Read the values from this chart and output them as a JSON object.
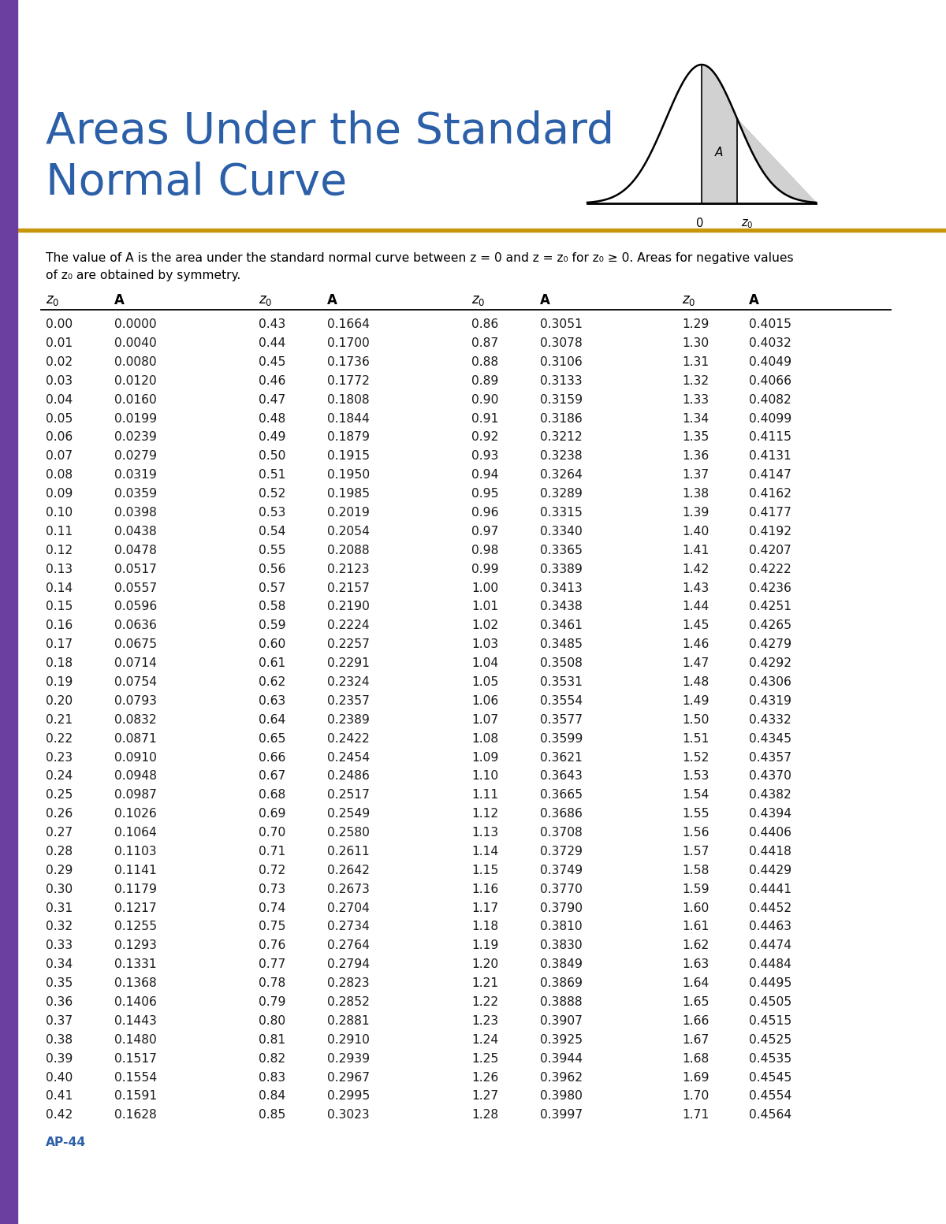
{
  "title_line1": "Areas Under the Standard",
  "title_line2": "Normal Curve",
  "title_color": "#2b5fa8",
  "sidebar_color": "#6b3fa0",
  "rule_color": "#c8960a",
  "footer": "AP-44",
  "footer_color": "#2b5fa8",
  "bg_color": "#ffffff",
  "text_color": "#1a1a1a",
  "table_data": [
    [
      0.0,
      0.0,
      0.43,
      0.1664,
      0.86,
      0.3051,
      1.29,
      0.4015
    ],
    [
      0.01,
      0.004,
      0.44,
      0.17,
      0.87,
      0.3078,
      1.3,
      0.4032
    ],
    [
      0.02,
      0.008,
      0.45,
      0.1736,
      0.88,
      0.3106,
      1.31,
      0.4049
    ],
    [
      0.03,
      0.012,
      0.46,
      0.1772,
      0.89,
      0.3133,
      1.32,
      0.4066
    ],
    [
      0.04,
      0.016,
      0.47,
      0.1808,
      0.9,
      0.3159,
      1.33,
      0.4082
    ],
    [
      0.05,
      0.0199,
      0.48,
      0.1844,
      0.91,
      0.3186,
      1.34,
      0.4099
    ],
    [
      0.06,
      0.0239,
      0.49,
      0.1879,
      0.92,
      0.3212,
      1.35,
      0.4115
    ],
    [
      0.07,
      0.0279,
      0.5,
      0.1915,
      0.93,
      0.3238,
      1.36,
      0.4131
    ],
    [
      0.08,
      0.0319,
      0.51,
      0.195,
      0.94,
      0.3264,
      1.37,
      0.4147
    ],
    [
      0.09,
      0.0359,
      0.52,
      0.1985,
      0.95,
      0.3289,
      1.38,
      0.4162
    ],
    [
      0.1,
      0.0398,
      0.53,
      0.2019,
      0.96,
      0.3315,
      1.39,
      0.4177
    ],
    [
      0.11,
      0.0438,
      0.54,
      0.2054,
      0.97,
      0.334,
      1.4,
      0.4192
    ],
    [
      0.12,
      0.0478,
      0.55,
      0.2088,
      0.98,
      0.3365,
      1.41,
      0.4207
    ],
    [
      0.13,
      0.0517,
      0.56,
      0.2123,
      0.99,
      0.3389,
      1.42,
      0.4222
    ],
    [
      0.14,
      0.0557,
      0.57,
      0.2157,
      1.0,
      0.3413,
      1.43,
      0.4236
    ],
    [
      0.15,
      0.0596,
      0.58,
      0.219,
      1.01,
      0.3438,
      1.44,
      0.4251
    ],
    [
      0.16,
      0.0636,
      0.59,
      0.2224,
      1.02,
      0.3461,
      1.45,
      0.4265
    ],
    [
      0.17,
      0.0675,
      0.6,
      0.2257,
      1.03,
      0.3485,
      1.46,
      0.4279
    ],
    [
      0.18,
      0.0714,
      0.61,
      0.2291,
      1.04,
      0.3508,
      1.47,
      0.4292
    ],
    [
      0.19,
      0.0754,
      0.62,
      0.2324,
      1.05,
      0.3531,
      1.48,
      0.4306
    ],
    [
      0.2,
      0.0793,
      0.63,
      0.2357,
      1.06,
      0.3554,
      1.49,
      0.4319
    ],
    [
      0.21,
      0.0832,
      0.64,
      0.2389,
      1.07,
      0.3577,
      1.5,
      0.4332
    ],
    [
      0.22,
      0.0871,
      0.65,
      0.2422,
      1.08,
      0.3599,
      1.51,
      0.4345
    ],
    [
      0.23,
      0.091,
      0.66,
      0.2454,
      1.09,
      0.3621,
      1.52,
      0.4357
    ],
    [
      0.24,
      0.0948,
      0.67,
      0.2486,
      1.1,
      0.3643,
      1.53,
      0.437
    ],
    [
      0.25,
      0.0987,
      0.68,
      0.2517,
      1.11,
      0.3665,
      1.54,
      0.4382
    ],
    [
      0.26,
      0.1026,
      0.69,
      0.2549,
      1.12,
      0.3686,
      1.55,
      0.4394
    ],
    [
      0.27,
      0.1064,
      0.7,
      0.258,
      1.13,
      0.3708,
      1.56,
      0.4406
    ],
    [
      0.28,
      0.1103,
      0.71,
      0.2611,
      1.14,
      0.3729,
      1.57,
      0.4418
    ],
    [
      0.29,
      0.1141,
      0.72,
      0.2642,
      1.15,
      0.3749,
      1.58,
      0.4429
    ],
    [
      0.3,
      0.1179,
      0.73,
      0.2673,
      1.16,
      0.377,
      1.59,
      0.4441
    ],
    [
      0.31,
      0.1217,
      0.74,
      0.2704,
      1.17,
      0.379,
      1.6,
      0.4452
    ],
    [
      0.32,
      0.1255,
      0.75,
      0.2734,
      1.18,
      0.381,
      1.61,
      0.4463
    ],
    [
      0.33,
      0.1293,
      0.76,
      0.2764,
      1.19,
      0.383,
      1.62,
      0.4474
    ],
    [
      0.34,
      0.1331,
      0.77,
      0.2794,
      1.2,
      0.3849,
      1.63,
      0.4484
    ],
    [
      0.35,
      0.1368,
      0.78,
      0.2823,
      1.21,
      0.3869,
      1.64,
      0.4495
    ],
    [
      0.36,
      0.1406,
      0.79,
      0.2852,
      1.22,
      0.3888,
      1.65,
      0.4505
    ],
    [
      0.37,
      0.1443,
      0.8,
      0.2881,
      1.23,
      0.3907,
      1.66,
      0.4515
    ],
    [
      0.38,
      0.148,
      0.81,
      0.291,
      1.24,
      0.3925,
      1.67,
      0.4525
    ],
    [
      0.39,
      0.1517,
      0.82,
      0.2939,
      1.25,
      0.3944,
      1.68,
      0.4535
    ],
    [
      0.4,
      0.1554,
      0.83,
      0.2967,
      1.26,
      0.3962,
      1.69,
      0.4545
    ],
    [
      0.41,
      0.1591,
      0.84,
      0.2995,
      1.27,
      0.398,
      1.7,
      0.4554
    ],
    [
      0.42,
      0.1628,
      0.85,
      0.3023,
      1.28,
      0.3997,
      1.71,
      0.4564
    ]
  ]
}
